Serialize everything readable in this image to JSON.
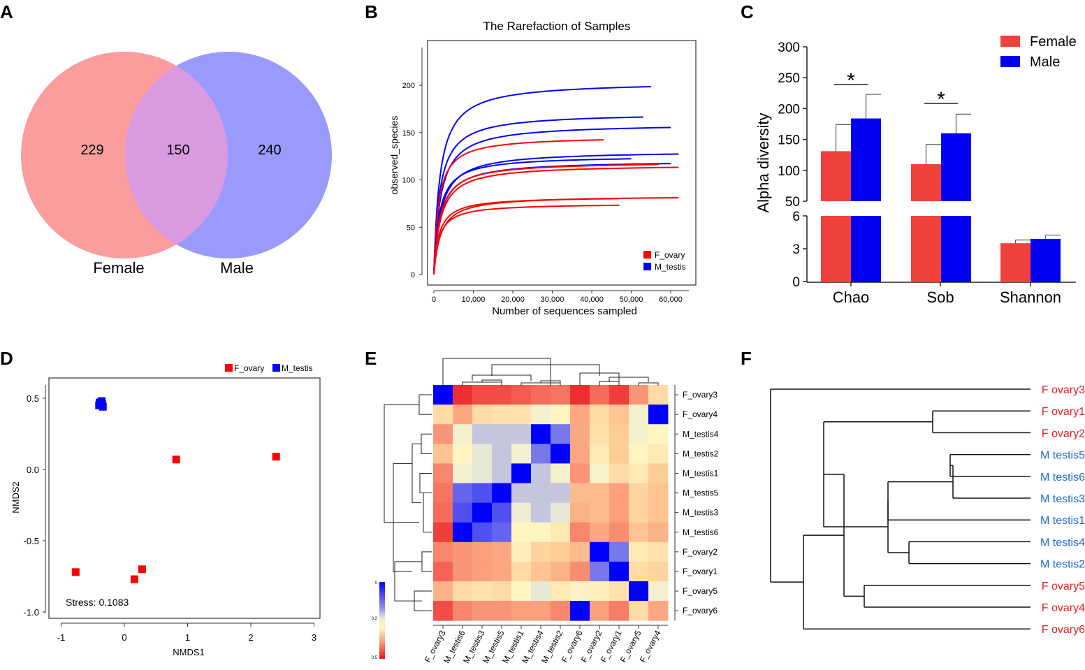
{
  "panels": {
    "a": "A",
    "b": "B",
    "c": "C",
    "d": "D",
    "e": "E",
    "f": "F"
  },
  "colors": {
    "female_venn": "#fc9d9d",
    "male_venn": "#9a9afd",
    "overlap": "#d99ae0",
    "red": "#ff0000",
    "blue": "#0000ff",
    "bar_female": "#f0413c",
    "bar_male": "#0000f2",
    "female_label": "#e61e1e",
    "male_label": "#1f66d9"
  },
  "chart_data": [
    {
      "id": "venn",
      "type": "venn",
      "sets": [
        {
          "name": "Female",
          "only": "229"
        },
        {
          "name": "Male",
          "only": "240"
        }
      ],
      "overlap": "150"
    },
    {
      "id": "rarefaction",
      "type": "line",
      "title": "The Rarefaction of Samples",
      "xlabel": "Number of sequences sampled",
      "ylabel": "observed_species",
      "xlim": [
        0,
        63000
      ],
      "ylim": [
        0,
        240
      ],
      "xticks": [
        0,
        10000,
        20000,
        30000,
        40000,
        50000,
        60000
      ],
      "xtick_labels": [
        "0",
        "10,000",
        "20,000",
        "30,000",
        "40,000",
        "50,000",
        "60,000"
      ],
      "yticks": [
        0,
        50,
        100,
        150,
        200
      ],
      "legend": [
        "F_ovary",
        "M_testis"
      ],
      "series": [
        {
          "group": "M_testis",
          "end_x": 55000,
          "end_y": 198
        },
        {
          "group": "M_testis",
          "end_x": 53000,
          "end_y": 166
        },
        {
          "group": "M_testis",
          "end_x": 60000,
          "end_y": 155
        },
        {
          "group": "F_ovary",
          "end_x": 43000,
          "end_y": 142
        },
        {
          "group": "M_testis",
          "end_x": 62000,
          "end_y": 127
        },
        {
          "group": "M_testis",
          "end_x": 50000,
          "end_y": 122
        },
        {
          "group": "M_testis",
          "end_x": 60000,
          "end_y": 117
        },
        {
          "group": "F_ovary",
          "end_x": 57000,
          "end_y": 116
        },
        {
          "group": "F_ovary",
          "end_x": 62000,
          "end_y": 113
        },
        {
          "group": "F_ovary",
          "end_x": 62000,
          "end_y": 81
        },
        {
          "group": "F_ovary",
          "end_x": 47000,
          "end_y": 80
        },
        {
          "group": "F_ovary",
          "end_x": 47000,
          "end_y": 73
        }
      ]
    },
    {
      "id": "alpha",
      "type": "bar",
      "ylabel": "Alpha  diversity",
      "categories": [
        "Chao",
        "Sob",
        "Shannon"
      ],
      "series": [
        {
          "name": "Female",
          "values": [
            131,
            110,
            3.5
          ],
          "errors": [
            43,
            32,
            0.3
          ]
        },
        {
          "name": "Male",
          "values": [
            184,
            160,
            3.9
          ],
          "errors": [
            39,
            31,
            0.35
          ]
        }
      ],
      "upper_ticks": [
        50,
        100,
        150,
        200,
        250,
        300
      ],
      "lower_ticks": [
        0,
        3,
        6
      ],
      "significance": [
        "*",
        "*",
        ""
      ]
    },
    {
      "id": "nmds",
      "type": "scatter",
      "xlabel": "NMDS1",
      "ylabel": "NMDS2",
      "xlim": [
        -1.2,
        3.1
      ],
      "ylim": [
        -1.05,
        0.65
      ],
      "xticks": [
        -1,
        0,
        1,
        2,
        3
      ],
      "yticks": [
        0.5,
        0.0,
        -0.5,
        -1.0
      ],
      "ytick_labels": [
        "0.5",
        "0.0",
        "-0.5",
        "-1.0"
      ],
      "legend": [
        "F_ovary",
        "M_testis"
      ],
      "stress": "Stress: 0.1083",
      "points": [
        {
          "group": "M_testis",
          "x": -0.38,
          "y": 0.47
        },
        {
          "group": "M_testis",
          "x": -0.35,
          "y": 0.46
        },
        {
          "group": "M_testis",
          "x": -0.4,
          "y": 0.45
        },
        {
          "group": "M_testis",
          "x": -0.36,
          "y": 0.48
        },
        {
          "group": "M_testis",
          "x": -0.34,
          "y": 0.44
        },
        {
          "group": "M_testis",
          "x": -0.39,
          "y": 0.47
        },
        {
          "group": "F_ovary",
          "x": 0.82,
          "y": 0.07
        },
        {
          "group": "F_ovary",
          "x": 2.4,
          "y": 0.09
        },
        {
          "group": "F_ovary",
          "x": -0.77,
          "y": -0.72
        },
        {
          "group": "F_ovary",
          "x": 0.16,
          "y": -0.77
        },
        {
          "group": "F_ovary",
          "x": 0.28,
          "y": -0.7
        }
      ]
    },
    {
      "id": "heatmap",
      "type": "heatmap",
      "rows": [
        "F_ovary3",
        "F_ovary4",
        "M_testis4",
        "M_testis2",
        "M_testis1",
        "M_testis5",
        "M_testis3",
        "M_testis6",
        "F_ovary2",
        "F_ovary1",
        "F_ovary5",
        "F_ovary6"
      ],
      "cols": [
        "F_ovary3",
        "M_testis6",
        "M_testis3",
        "M_testis5",
        "M_testis1",
        "M_testis4",
        "M_testis2",
        "F_ovary6",
        "F_ovary2",
        "F_ovary1",
        "F_ovary5",
        "F_ovary4"
      ],
      "values": [
        [
          0.0,
          0.48,
          0.46,
          0.46,
          0.45,
          0.43,
          0.42,
          0.48,
          0.43,
          0.47,
          0.38,
          0.3
        ],
        [
          0.3,
          0.36,
          0.3,
          0.29,
          0.29,
          0.24,
          0.26,
          0.36,
          0.3,
          0.33,
          0.24,
          0.0
        ],
        [
          0.38,
          0.24,
          0.19,
          0.19,
          0.19,
          0.0,
          0.12,
          0.36,
          0.29,
          0.32,
          0.24,
          0.26
        ],
        [
          0.33,
          0.26,
          0.22,
          0.19,
          0.24,
          0.12,
          0.0,
          0.36,
          0.28,
          0.32,
          0.26,
          0.28
        ],
        [
          0.4,
          0.24,
          0.22,
          0.19,
          0.0,
          0.19,
          0.24,
          0.38,
          0.25,
          0.3,
          0.28,
          0.32
        ],
        [
          0.42,
          0.1,
          0.08,
          0.0,
          0.19,
          0.19,
          0.19,
          0.34,
          0.34,
          0.37,
          0.31,
          0.33
        ],
        [
          0.43,
          0.08,
          0.0,
          0.08,
          0.23,
          0.19,
          0.22,
          0.35,
          0.34,
          0.37,
          0.31,
          0.33
        ],
        [
          0.47,
          0.0,
          0.08,
          0.1,
          0.26,
          0.26,
          0.28,
          0.4,
          0.36,
          0.39,
          0.33,
          0.35
        ],
        [
          0.4,
          0.38,
          0.37,
          0.36,
          0.27,
          0.31,
          0.32,
          0.34,
          0.0,
          0.12,
          0.28,
          0.29
        ],
        [
          0.44,
          0.38,
          0.37,
          0.36,
          0.3,
          0.33,
          0.35,
          0.39,
          0.12,
          0.0,
          0.3,
          0.31
        ],
        [
          0.35,
          0.3,
          0.29,
          0.3,
          0.26,
          0.22,
          0.28,
          0.25,
          0.27,
          0.29,
          0.0,
          0.24
        ],
        [
          0.46,
          0.4,
          0.38,
          0.38,
          0.37,
          0.37,
          0.4,
          0.0,
          0.37,
          0.41,
          0.3,
          0.36
        ]
      ],
      "colorbar_ticks": [
        "0",
        "0.2",
        "0.5"
      ]
    },
    {
      "id": "dendrogram",
      "type": "dendrogram",
      "leaves": [
        {
          "label": "F ovary3",
          "group": "female"
        },
        {
          "label": "F ovary1",
          "group": "female"
        },
        {
          "label": "F ovary2",
          "group": "female"
        },
        {
          "label": "M testis5",
          "group": "male"
        },
        {
          "label": "M testis6",
          "group": "male"
        },
        {
          "label": "M testis3",
          "group": "male"
        },
        {
          "label": "M testis1",
          "group": "male"
        },
        {
          "label": "M testis4",
          "group": "male"
        },
        {
          "label": "M testis2",
          "group": "male"
        },
        {
          "label": "F ovary5",
          "group": "female"
        },
        {
          "label": "F ovary4",
          "group": "female"
        },
        {
          "label": "F ovary6",
          "group": "female"
        }
      ],
      "tree": [
        0,
        [
          [
            [
              [
                1,
                2
              ],
              [
                [
                  [
                    3,
                    [
                      4,
                      5
                    ]
                  ],
                  6
                ],
                [
                  7,
                  8
                ]
              ]
            ],
            [
              9,
              10
            ]
          ],
          11
        ]
      ]
    }
  ]
}
